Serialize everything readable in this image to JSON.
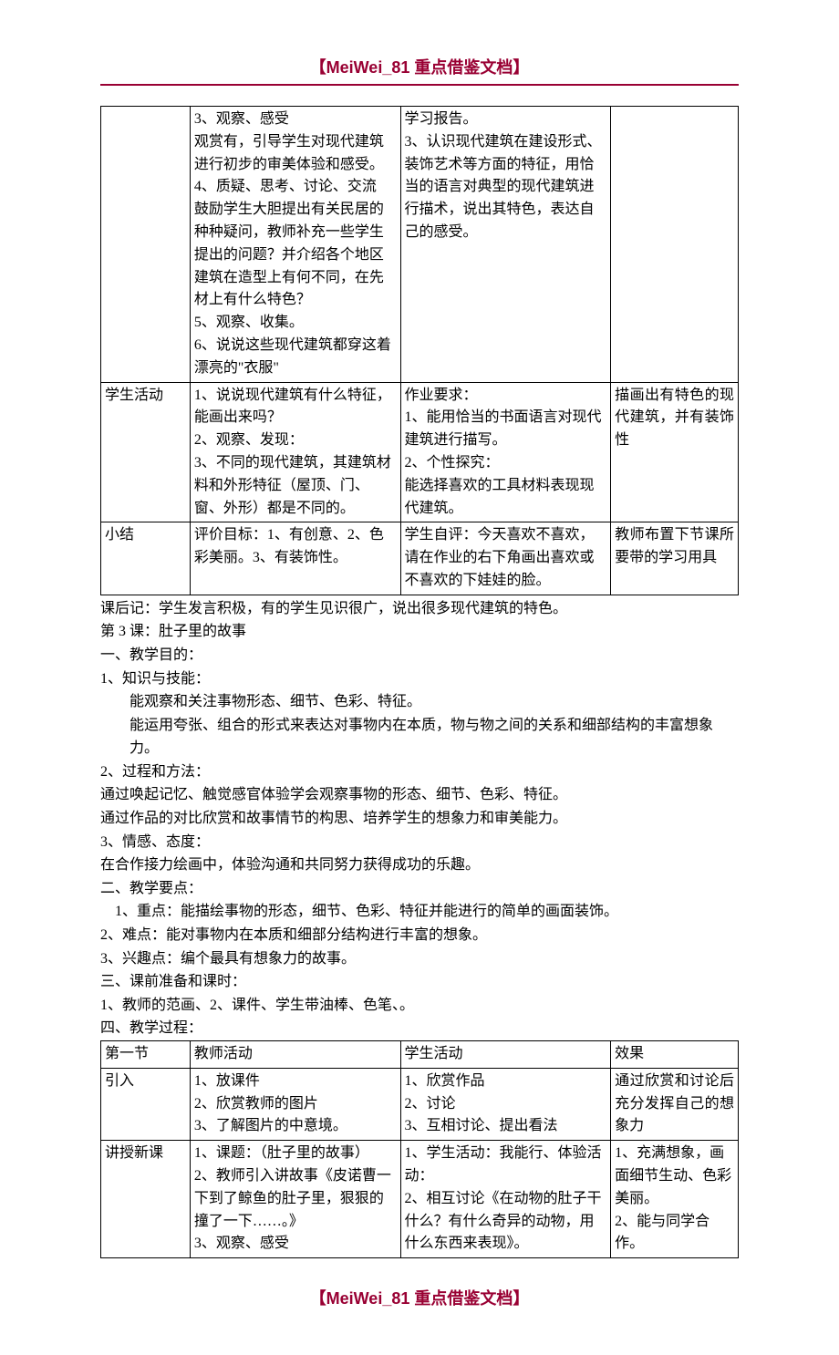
{
  "header": "【MeiWei_81 重点借鉴文档】",
  "footer": "【MeiWei_81 重点借鉴文档】",
  "colors": {
    "accent": "#990033",
    "text": "#000000",
    "border": "#000000",
    "bg": "#ffffff"
  },
  "table1": {
    "rows": [
      {
        "c1": "",
        "c2": "3、观察、感受\n观赏有，引导学生对现代建筑进行初步的审美体验和感受。\n4、质疑、思考、讨论、交流\n鼓励学生大胆提出有关民居的种种疑问，教师补充一些学生提出的问题？并介绍各个地区建筑在造型上有何不同，在先材上有什么特色？\n5、观察、收集。\n6、说说这些现代建筑都穿这着漂亮的\"衣服\"",
        "c3": "学习报告。\n3、认识现代建筑在建设形式、装饰艺术等方面的特征，用恰当的语言对典型的现代建筑进行描术，说出其特色，表达自己的感受。",
        "c4": ""
      },
      {
        "c1": "学生活动",
        "c2": "1、说说现代建筑有什么特征，能画出来吗？\n2、观察、发现：\n3、不同的现代建筑，其建筑材料和外形特征（屋顶、门、窗、外形）都是不同的。",
        "c3": "作业要求：\n1、能用恰当的书面语言对现代建筑进行描写。\n2、个性探究：\n能选择喜欢的工具材料表现现代建筑。",
        "c4": "描画出有特色的现代建筑，并有装饰性"
      },
      {
        "c1": "小结",
        "c2": "评价目标：1、有创意、2、色彩美丽。3、有装饰性。",
        "c3": "学生自评：今天喜欢不喜欢，请在作业的右下角画出喜欢或不喜欢的下娃娃的脸。",
        "c4": "教师布置下节课所要带的学习用具"
      }
    ]
  },
  "body": [
    "课后记：学生发言积极，有的学生见识很广，说出很多现代建筑的特色。",
    "第 3 课：肚子里的故事",
    "一、教学目的：",
    "1、知识与技能：",
    "    能观察和关注事物形态、细节、色彩、特征。",
    "    能运用夸张、组合的形式来表达对事物内在本质，物与物之间的关系和细部结构的丰富想象力。",
    "2、过程和方法：",
    "通过唤起记忆、触觉感官体验学会观察事物的形态、细节、色彩、特征。",
    "通过作品的对比欣赏和故事情节的构思、培养学生的想象力和审美能力。",
    "3、情感、态度：",
    "在合作接力绘画中，体验沟通和共同努力获得成功的乐趣。",
    "二、教学要点：",
    "  1、重点：能描绘事物的形态，细节、色彩、特征并能进行的简单的画面装饰。",
    "2、难点：能对事物内在本质和细部分结构进行丰富的想象。",
    "3、兴趣点：编个最具有想象力的故事。",
    "三、课前准备和课时：",
    "1、教师的范画、2、课件、学生带油棒、色笔、。",
    "四、教学过程："
  ],
  "table2": {
    "rows": [
      {
        "c1": "第一节",
        "c2": "教师活动",
        "c3": "学生活动",
        "c4": "效果"
      },
      {
        "c1": "引入",
        "c2": "1、放课件\n2、欣赏教师的图片\n3、了解图片的中意境。",
        "c3": "1、欣赏作品\n2、讨论\n3、互相讨论、提出看法",
        "c4": "通过欣赏和讨论后充分发挥自己的想象力"
      },
      {
        "c1": "讲授新课",
        "c2": "1、课题：（肚子里的故事）\n2、教师引入讲故事《皮诺曹一下到了鲸鱼的肚子里，狠狠的撞了一下……。》\n3、观察、感受",
        "c3": "1、学生活动：我能行、体验活动：\n2、相互讨论《在动物的肚子干什么？有什么奇异的动物，用什么东西来表现》。",
        "c4": "1、充满想象，画面细节生动、色彩美丽。\n2、能与同学合作。"
      }
    ]
  }
}
